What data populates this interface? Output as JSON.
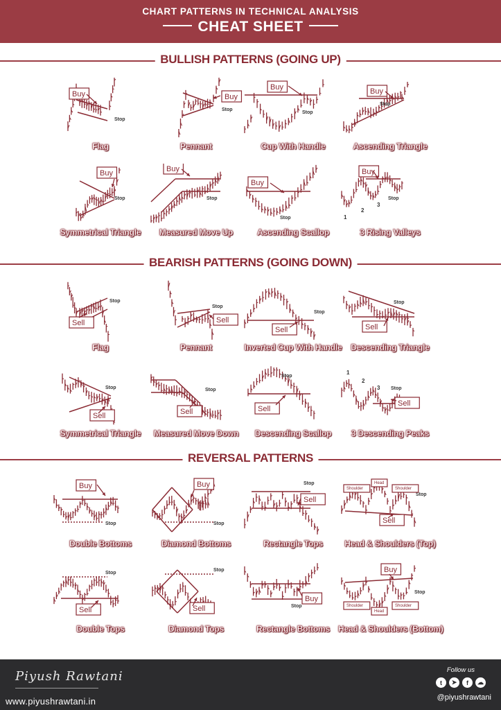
{
  "header": {
    "title": "CHART PATTERNS IN TECHNICAL ANALYSIS",
    "subtitle": "CHEAT SHEET"
  },
  "sections": {
    "bullish": "BULLISH PATTERNS (GOING UP)",
    "bearish": "BEARISH PATTERNS (GOING DOWN)",
    "reversal": "REVERSAL PATTERNS"
  },
  "patterns": [
    {
      "caption": "Flag",
      "signal": "Buy",
      "stop": "Stop"
    },
    {
      "caption": "Pennant",
      "signal": "Buy",
      "stop": "Stop"
    },
    {
      "caption": "Cup With Handle",
      "signal": "Buy",
      "stop": "Stop"
    },
    {
      "caption": "Ascending Triangle",
      "signal": "Buy",
      "stop": "Stop"
    },
    {
      "caption": "Symmetrical Triangle",
      "signal": "Buy",
      "stop": "Stop"
    },
    {
      "caption": "Measured Move Up",
      "signal": "Buy",
      "stop": "Stop"
    },
    {
      "caption": "Ascending Scallop",
      "signal": "Buy",
      "stop": "Stop"
    },
    {
      "caption": "3 Rising Valleys",
      "signal": "Buy",
      "stop": "Stop",
      "marks": [
        "1",
        "2",
        "3"
      ]
    },
    {
      "caption": "Flag",
      "signal": "Sell",
      "stop": "Stop"
    },
    {
      "caption": "Pennant",
      "signal": "Sell",
      "stop": "Stop"
    },
    {
      "caption": "Inverted Cup With Handle",
      "signal": "Sell",
      "stop": "Stop"
    },
    {
      "caption": "Descending Triangle",
      "signal": "Sell",
      "stop": "Stop"
    },
    {
      "caption": "Symmetrical Triangle",
      "signal": "Sell",
      "stop": "Stop"
    },
    {
      "caption": "Measured Move Down",
      "signal": "Sell",
      "stop": "Stop"
    },
    {
      "caption": "Descending Scallop",
      "signal": "Sell",
      "stop": "Stop"
    },
    {
      "caption": "3 Descending Peaks",
      "signal": "Sell",
      "stop": "Stop",
      "marks": [
        "1",
        "2",
        "3"
      ]
    },
    {
      "caption": "Double Bottoms",
      "signal": "Buy",
      "stop": "Stop"
    },
    {
      "caption": "Diamond Bottoms",
      "signal": "Buy",
      "stop": "Stop"
    },
    {
      "caption": "Rectangle Tops",
      "signal": "Sell",
      "stop": "Stop"
    },
    {
      "caption": "Head & Shoulders (Top)",
      "signal": "Sell",
      "stop": "Stop",
      "marks": [
        "Shoulder",
        "Head",
        "Shoulder"
      ]
    },
    {
      "caption": "Double Tops",
      "signal": "Sell",
      "stop": "Stop"
    },
    {
      "caption": "Diamond Tops",
      "signal": "Sell",
      "stop": "Stop"
    },
    {
      "caption": "Rectangle Bottoms",
      "signal": "Buy",
      "stop": "Stop"
    },
    {
      "caption": "Head & Shoulders (Bottom)",
      "signal": "Buy",
      "stop": "Stop",
      "marks": [
        "Shoulder",
        "Head",
        "Shoulder"
      ]
    }
  ],
  "footer": {
    "signature": "Piyush Rawtani",
    "website": "www.piyushrawtani.in",
    "follow": "Follow us",
    "handle": "@piyushrawtani",
    "socials": [
      "twitter-icon",
      "telegram-icon",
      "facebook-icon",
      "cloud-icon"
    ]
  },
  "colors": {
    "accent": "#9b3c44",
    "footer": "#2c2c2e",
    "stroke": "#8a2a33"
  }
}
